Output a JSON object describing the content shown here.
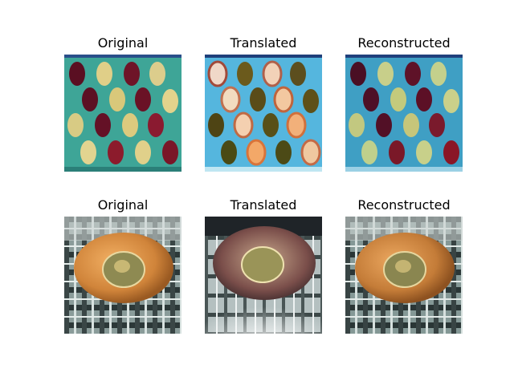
{
  "rows": [
    {
      "titles": [
        "Original",
        "Translated",
        "Reconstructed"
      ],
      "subject": "fruits-on-tray"
    },
    {
      "titles": [
        "Original",
        "Translated",
        "Reconstructed"
      ],
      "subject": "orange-on-plaid-cloth"
    }
  ],
  "colors": {
    "background": "#ffffff",
    "tray_teal": "#3fa89a",
    "tray_blue": "#4fb0d8",
    "orange": "#d98a3a",
    "plaid_dark": "#2f3a3a"
  }
}
